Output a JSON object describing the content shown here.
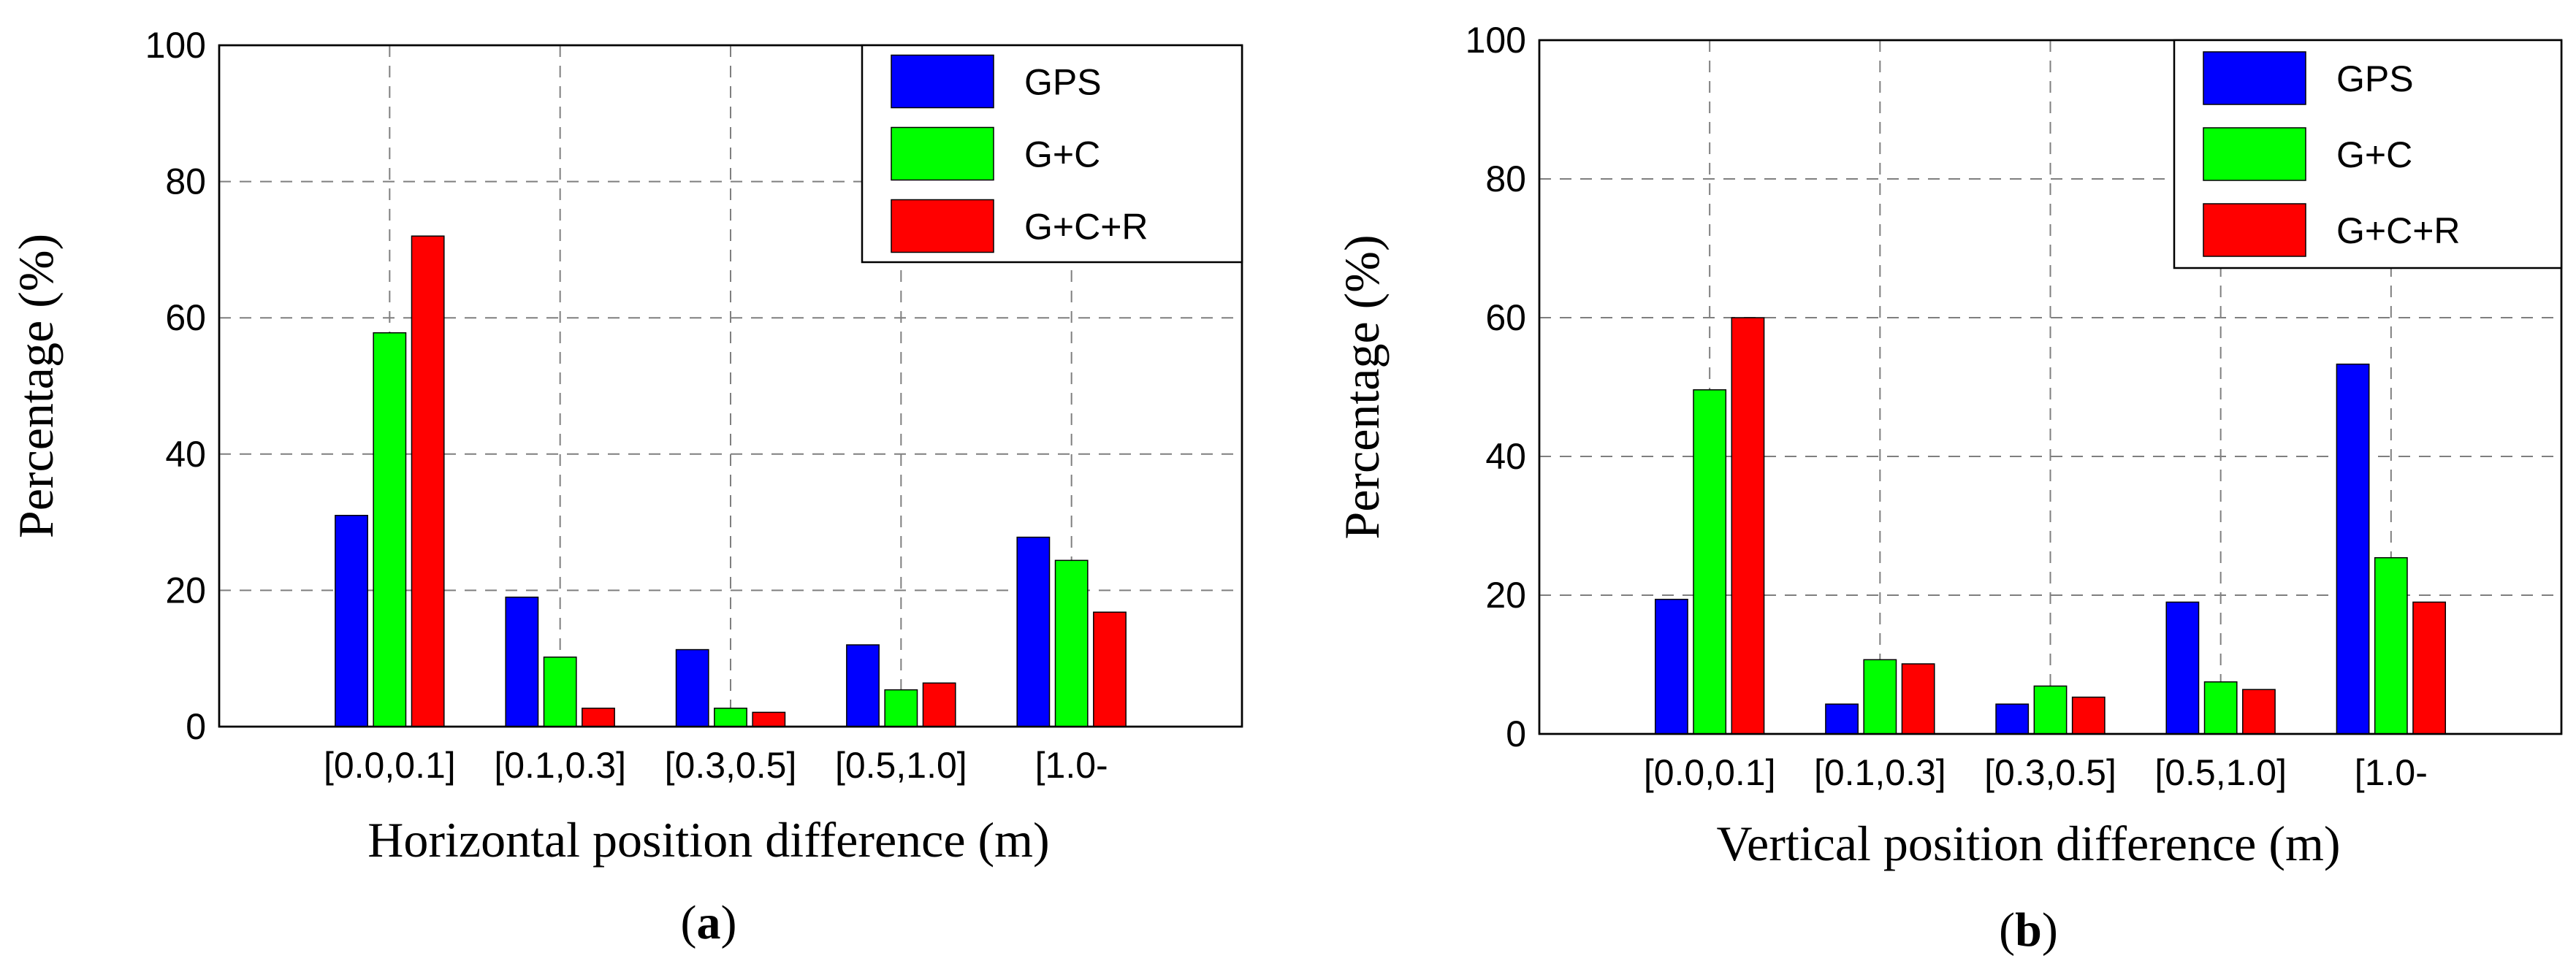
{
  "chart_data": [
    {
      "type": "bar",
      "panel_label": "a",
      "categories": [
        "[0.0,0.1]",
        "[0.1,0.3]",
        "[0.3,0.5]",
        "[0.5,1.0]",
        "[1.0-"
      ],
      "series": [
        {
          "name": "GPS",
          "color": "#0000ff",
          "values": [
            31,
            19,
            11.3,
            12,
            27.8
          ]
        },
        {
          "name": "G+C",
          "color": "#00ff00",
          "values": [
            57.8,
            10.2,
            2.7,
            5.4,
            24.4
          ]
        },
        {
          "name": "G+C+R",
          "color": "#ff0000",
          "values": [
            72,
            2.7,
            2.1,
            6.4,
            16.8
          ]
        }
      ],
      "title": "",
      "xlabel": "Horizontal position difference (m)",
      "ylabel": "Percentage (%)",
      "ylim": [
        0,
        100
      ],
      "yticks": [
        "0",
        "20",
        "40",
        "60",
        "80",
        "100"
      ],
      "grid": true,
      "legend_position": "top-right"
    },
    {
      "type": "bar",
      "panel_label": "b",
      "categories": [
        "[0.0,0.1]",
        "[0.1,0.3]",
        "[0.3,0.5]",
        "[0.5,1.0]",
        "[1.0-"
      ],
      "series": [
        {
          "name": "GPS",
          "color": "#0000ff",
          "values": [
            19.4,
            4.3,
            4.3,
            19,
            53.3
          ]
        },
        {
          "name": "G+C",
          "color": "#00ff00",
          "values": [
            49.6,
            10.7,
            6.9,
            7.5,
            25.4
          ]
        },
        {
          "name": "G+C+R",
          "color": "#ff0000",
          "values": [
            60,
            10.1,
            5.3,
            6.4,
            19
          ]
        }
      ],
      "title": "",
      "xlabel": "Vertical position difference (m)",
      "ylabel": "Percentage (%)",
      "ylim": [
        0,
        100
      ],
      "yticks": [
        "0",
        "20",
        "40",
        "60",
        "80",
        "100"
      ],
      "grid": true,
      "legend_position": "top-right"
    }
  ]
}
